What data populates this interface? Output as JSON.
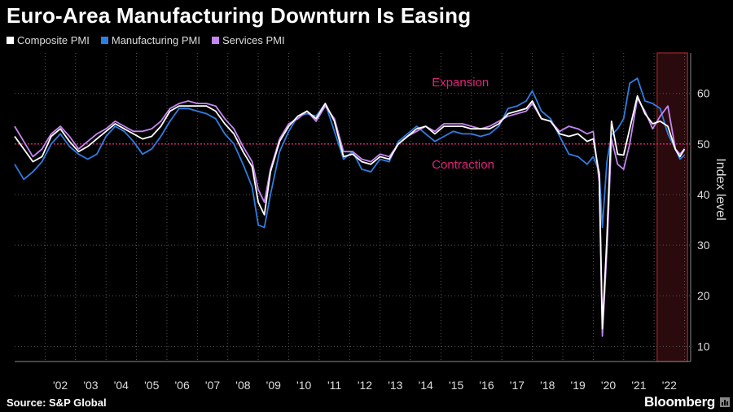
{
  "header": {
    "title": "Euro-Area Manufacturing Downturn Is Easing"
  },
  "footer": {
    "source": "Source: S&P Global",
    "brand": "Bloomberg"
  },
  "colors": {
    "composite": "#ffffff",
    "manufacturing": "#2f7de1",
    "services": "#c685f2",
    "threshold": "#e0227a",
    "highlight_fill": "#2a0a0c",
    "highlight_stroke": "#a3242b",
    "grid": "#555555",
    "axis_text": "#dddddd"
  },
  "chart_data": {
    "type": "line",
    "title": "Euro-Area Manufacturing Downturn Is Easing",
    "ylabel": "Index level",
    "ylim": [
      7,
      68
    ],
    "yticks": [
      10,
      20,
      30,
      40,
      50,
      60
    ],
    "xlim": [
      2001.0,
      2023.2
    ],
    "xtick_labels": [
      "'02",
      "'03",
      "'04",
      "'05",
      "'06",
      "'07",
      "'08",
      "'09",
      "'10",
      "'11",
      "'12",
      "'13",
      "'14",
      "'15",
      "'16",
      "'17",
      "'18",
      "'19",
      "'20",
      "'21",
      "'22"
    ],
    "xtick_years": [
      2002,
      2003,
      2004,
      2005,
      2006,
      2007,
      2008,
      2009,
      2010,
      2011,
      2012,
      2013,
      2014,
      2015,
      2016,
      2017,
      2018,
      2019,
      2020,
      2021,
      2022
    ],
    "reference_line": {
      "value": 50,
      "label_above": "Expansion",
      "label_below": "Contraction"
    },
    "highlight": {
      "start": 2022.1,
      "end": 2023.1
    },
    "grid": true,
    "legend_position": "top-left",
    "series": [
      {
        "name": "Composite PMI",
        "key": "composite",
        "x": [
          2001.0,
          2001.3,
          2001.6,
          2001.9,
          2002.2,
          2002.5,
          2002.8,
          2003.1,
          2003.4,
          2003.7,
          2004.0,
          2004.3,
          2004.6,
          2004.9,
          2005.2,
          2005.5,
          2005.8,
          2006.1,
          2006.4,
          2006.7,
          2007.0,
          2007.3,
          2007.6,
          2007.9,
          2008.2,
          2008.5,
          2008.8,
          2009.0,
          2009.2,
          2009.4,
          2009.7,
          2010.0,
          2010.3,
          2010.6,
          2010.9,
          2011.2,
          2011.5,
          2011.8,
          2012.1,
          2012.4,
          2012.7,
          2013.0,
          2013.3,
          2013.6,
          2013.9,
          2014.2,
          2014.5,
          2014.8,
          2015.1,
          2015.4,
          2015.7,
          2016.0,
          2016.3,
          2016.6,
          2016.9,
          2017.2,
          2017.5,
          2017.8,
          2018.0,
          2018.3,
          2018.6,
          2018.9,
          2019.2,
          2019.5,
          2019.8,
          2020.0,
          2020.2,
          2020.3,
          2020.45,
          2020.6,
          2020.8,
          2021.0,
          2021.2,
          2021.45,
          2021.7,
          2021.95,
          2022.2,
          2022.45,
          2022.7,
          2022.85,
          2023.0
        ],
        "values": [
          51.5,
          49.0,
          46.5,
          47.5,
          51.5,
          53.0,
          50.5,
          48.5,
          49.5,
          51.0,
          52.5,
          54.0,
          53.0,
          52.0,
          51.0,
          51.5,
          53.5,
          56.5,
          57.5,
          57.5,
          57.5,
          57.5,
          56.5,
          54.0,
          52.0,
          48.5,
          45.5,
          38.5,
          36.0,
          44.5,
          50.5,
          53.5,
          55.5,
          56.5,
          55.0,
          58.0,
          54.5,
          47.5,
          48.0,
          46.5,
          46.0,
          47.5,
          47.0,
          50.0,
          51.5,
          53.0,
          53.5,
          52.0,
          53.5,
          53.5,
          53.5,
          53.0,
          53.0,
          53.0,
          54.0,
          56.0,
          56.5,
          57.0,
          58.5,
          55.0,
          54.5,
          52.0,
          51.5,
          52.0,
          50.5,
          51.0,
          44.0,
          13.5,
          31.5,
          54.5,
          48.0,
          47.8,
          53.0,
          59.5,
          56.0,
          54.0,
          54.5,
          53.5,
          48.9,
          47.5,
          49.0
        ]
      },
      {
        "name": "Manufacturing PMI",
        "key": "manufacturing",
        "x": [
          2001.0,
          2001.3,
          2001.6,
          2001.9,
          2002.2,
          2002.5,
          2002.8,
          2003.1,
          2003.4,
          2003.7,
          2004.0,
          2004.3,
          2004.6,
          2004.9,
          2005.2,
          2005.5,
          2005.8,
          2006.1,
          2006.4,
          2006.7,
          2007.0,
          2007.3,
          2007.6,
          2007.9,
          2008.2,
          2008.5,
          2008.8,
          2009.0,
          2009.2,
          2009.4,
          2009.7,
          2010.0,
          2010.3,
          2010.6,
          2010.9,
          2011.2,
          2011.5,
          2011.8,
          2012.1,
          2012.4,
          2012.7,
          2013.0,
          2013.3,
          2013.6,
          2013.9,
          2014.2,
          2014.5,
          2014.8,
          2015.1,
          2015.4,
          2015.7,
          2016.0,
          2016.3,
          2016.6,
          2016.9,
          2017.2,
          2017.5,
          2017.8,
          2018.0,
          2018.3,
          2018.6,
          2018.9,
          2019.2,
          2019.5,
          2019.8,
          2020.0,
          2020.2,
          2020.3,
          2020.45,
          2020.6,
          2020.8,
          2021.0,
          2021.2,
          2021.45,
          2021.7,
          2021.95,
          2022.2,
          2022.45,
          2022.7,
          2022.85,
          2023.0
        ],
        "values": [
          46.0,
          43.0,
          44.5,
          46.5,
          50.0,
          52.0,
          49.5,
          48.0,
          47.0,
          48.0,
          51.5,
          53.5,
          52.5,
          50.5,
          48.0,
          49.0,
          51.5,
          54.5,
          57.0,
          57.0,
          56.5,
          56.0,
          55.0,
          52.0,
          50.0,
          46.0,
          41.5,
          34.0,
          33.5,
          40.0,
          48.5,
          52.5,
          55.5,
          56.0,
          55.5,
          58.0,
          52.5,
          47.0,
          48.5,
          45.0,
          44.5,
          47.0,
          46.5,
          50.5,
          52.0,
          53.5,
          52.0,
          50.5,
          51.5,
          52.5,
          52.0,
          52.0,
          51.5,
          52.0,
          53.5,
          57.0,
          57.5,
          58.5,
          60.5,
          56.5,
          55.0,
          51.5,
          48.0,
          47.5,
          46.0,
          47.5,
          44.5,
          33.5,
          46.5,
          51.8,
          53.0,
          55.0,
          62.0,
          63.0,
          58.5,
          58.0,
          57.0,
          52.0,
          49.0,
          47.0,
          47.8
        ]
      },
      {
        "name": "Services PMI",
        "key": "services",
        "x": [
          2001.0,
          2001.3,
          2001.6,
          2001.9,
          2002.2,
          2002.5,
          2002.8,
          2003.1,
          2003.4,
          2003.7,
          2004.0,
          2004.3,
          2004.6,
          2004.9,
          2005.2,
          2005.5,
          2005.8,
          2006.1,
          2006.4,
          2006.7,
          2007.0,
          2007.3,
          2007.6,
          2007.9,
          2008.2,
          2008.5,
          2008.8,
          2009.0,
          2009.2,
          2009.4,
          2009.7,
          2010.0,
          2010.3,
          2010.6,
          2010.9,
          2011.2,
          2011.5,
          2011.8,
          2012.1,
          2012.4,
          2012.7,
          2013.0,
          2013.3,
          2013.6,
          2013.9,
          2014.2,
          2014.5,
          2014.8,
          2015.1,
          2015.4,
          2015.7,
          2016.0,
          2016.3,
          2016.6,
          2016.9,
          2017.2,
          2017.5,
          2017.8,
          2018.0,
          2018.3,
          2018.6,
          2018.9,
          2019.2,
          2019.5,
          2019.8,
          2020.0,
          2020.2,
          2020.3,
          2020.45,
          2020.6,
          2020.8,
          2021.0,
          2021.2,
          2021.45,
          2021.7,
          2021.95,
          2022.2,
          2022.45,
          2022.7,
          2022.85,
          2023.0
        ],
        "values": [
          53.5,
          50.5,
          47.5,
          49.0,
          52.0,
          53.5,
          51.5,
          49.0,
          50.5,
          52.0,
          53.0,
          54.5,
          53.5,
          52.5,
          52.5,
          53.0,
          54.5,
          57.0,
          58.0,
          58.5,
          58.0,
          58.0,
          57.5,
          55.0,
          53.0,
          49.5,
          46.5,
          41.0,
          38.5,
          45.0,
          51.0,
          54.0,
          55.0,
          56.5,
          54.5,
          57.5,
          55.0,
          48.5,
          48.5,
          47.0,
          46.5,
          48.0,
          47.5,
          50.0,
          51.5,
          52.5,
          53.5,
          52.5,
          54.0,
          54.0,
          54.0,
          53.5,
          53.0,
          53.5,
          54.5,
          55.5,
          56.0,
          56.5,
          58.0,
          55.0,
          54.5,
          52.5,
          53.5,
          53.0,
          52.0,
          52.5,
          42.5,
          12.0,
          29.0,
          51.0,
          46.0,
          45.0,
          50.0,
          59.0,
          56.5,
          53.0,
          55.5,
          57.5,
          49.0,
          48.0,
          49.0
        ]
      }
    ]
  }
}
